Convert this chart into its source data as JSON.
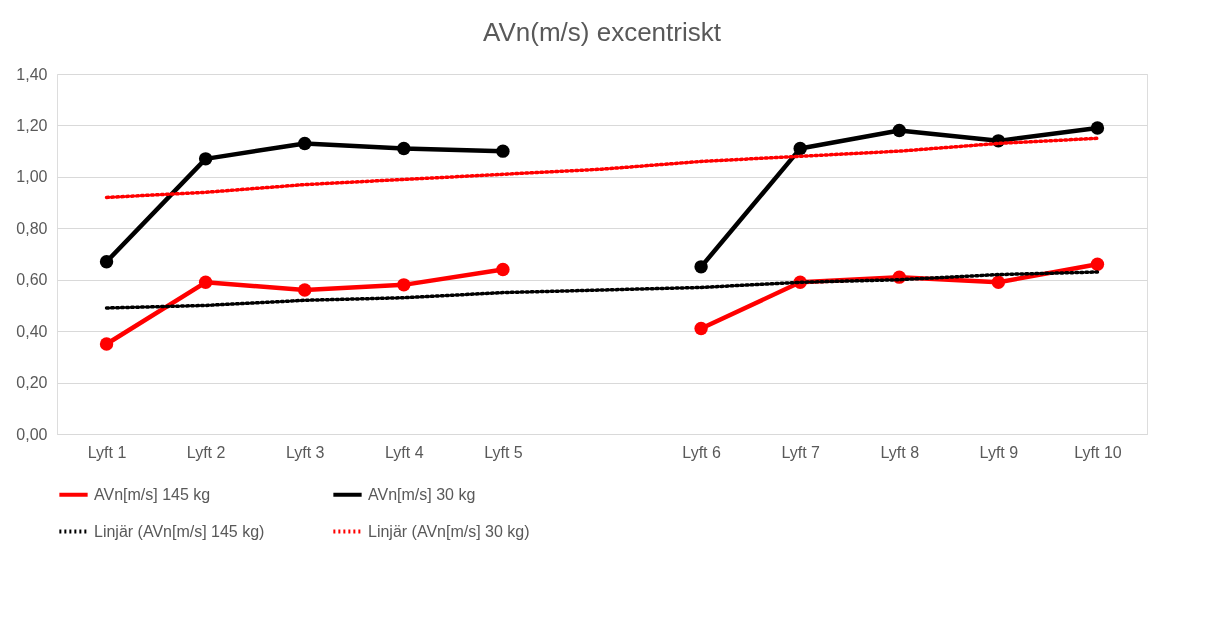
{
  "chart_data": {
    "type": "line",
    "title": "AVn(m/s) excentriskt",
    "categories": [
      "Lyft 1",
      "Lyft 2",
      "Lyft 3",
      "Lyft 4",
      "Lyft 5",
      null,
      "Lyft 6",
      "Lyft 7",
      "Lyft 8",
      "Lyft 9",
      "Lyft 10"
    ],
    "series": [
      {
        "name": "AVn[m/s] 145 kg",
        "color": "#ff0000",
        "marker": "circle",
        "line_style": "solid",
        "values": [
          0.35,
          0.59,
          0.56,
          0.58,
          0.64,
          null,
          0.41,
          0.59,
          0.61,
          0.59,
          0.66
        ]
      },
      {
        "name": "AVn[m/s] 30 kg",
        "color": "#000000",
        "marker": "circle",
        "line_style": "solid",
        "values": [
          0.67,
          1.07,
          1.13,
          1.11,
          1.1,
          null,
          0.65,
          1.11,
          1.18,
          1.14,
          1.19
        ]
      },
      {
        "name": "Linjär (AVn[m/s] 145 kg)",
        "color": "#000000",
        "marker": "none",
        "line_style": "dotted",
        "values": [
          0.49,
          0.5,
          0.52,
          0.53,
          0.55,
          0.56,
          0.57,
          0.59,
          0.6,
          0.62,
          0.63
        ]
      },
      {
        "name": "Linjär (AVn[m/s] 30 kg)",
        "color": "#ff0000",
        "marker": "none",
        "line_style": "dotted",
        "values": [
          0.92,
          0.94,
          0.97,
          0.99,
          1.01,
          1.03,
          1.06,
          1.08,
          1.1,
          1.13,
          1.15
        ]
      }
    ],
    "ylim": [
      0,
      1.4
    ],
    "yticks": [
      {
        "value": 0,
        "label": "0,00"
      },
      {
        "value": 0.2,
        "label": "0,20"
      },
      {
        "value": 0.4,
        "label": "0,40"
      },
      {
        "value": 0.6,
        "label": "0,60"
      },
      {
        "value": 0.8,
        "label": "0,80"
      },
      {
        "value": 1.0,
        "label": "1,00"
      },
      {
        "value": 1.2,
        "label": "1,20"
      },
      {
        "value": 1.4,
        "label": "1,40"
      }
    ],
    "grid": "y",
    "legend": "bottom"
  }
}
